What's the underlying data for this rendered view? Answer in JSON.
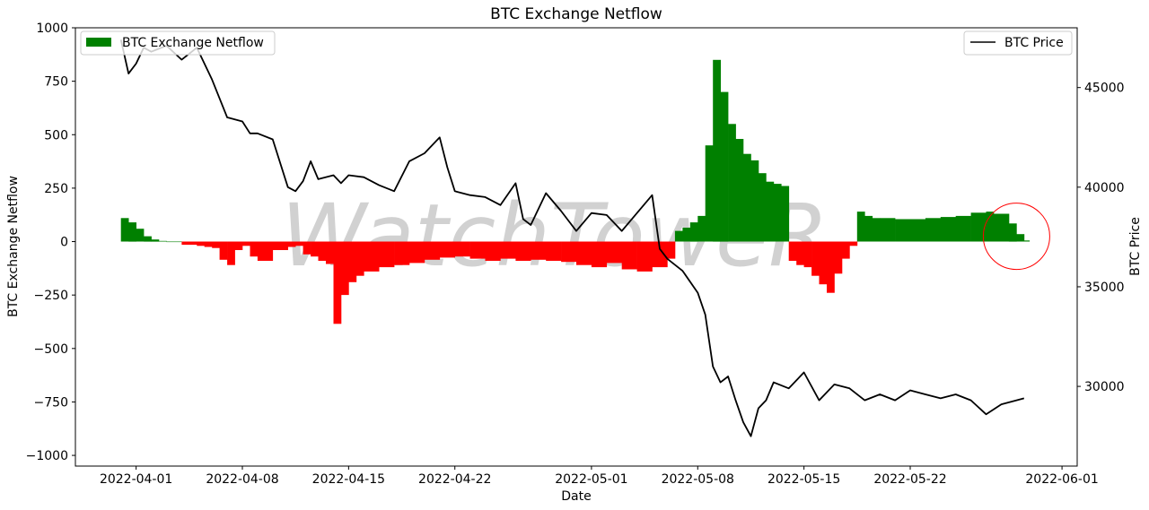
{
  "chart_data": {
    "type": "bar",
    "title": "BTC Exchange Netflow",
    "xlabel": "Date",
    "ylabel": "BTC Exchange Netflow",
    "y2label": "BTC Price",
    "watermark": "WatchToweR",
    "xlim": [
      "2022-03-28",
      "2022-06-02"
    ],
    "ylim": [
      -1050,
      1000
    ],
    "y2lim": [
      26000,
      48000
    ],
    "x_ticks": [
      "2022-04-01",
      "2022-04-08",
      "2022-04-15",
      "2022-04-22",
      "2022-05-01",
      "2022-05-08",
      "2022-05-15",
      "2022-05-22",
      "2022-06-01"
    ],
    "y_ticks": [
      1000,
      750,
      500,
      250,
      0,
      -250,
      -500,
      -750,
      -1000
    ],
    "y_tick_labels": [
      "1000",
      "750",
      "500",
      "250",
      "0",
      "−250",
      "−500",
      "−750",
      "−1000"
    ],
    "y2_ticks": [
      45000,
      40000,
      35000,
      30000
    ],
    "y2_tick_labels": [
      "45000",
      "40000",
      "35000",
      "30000"
    ],
    "legend": {
      "netflow_label": "BTC Exchange Netflow",
      "price_label": "BTC Price",
      "netflow_placement": "upper-left",
      "price_placement": "upper-right"
    },
    "colors": {
      "positive": "#008000",
      "negative": "#ff0000",
      "price": "#000000",
      "highlight_circle": "#ff0000"
    },
    "annotation": {
      "type": "circle",
      "center": {
        "date": "2022-05-29",
        "value": 25
      }
    },
    "series": [
      {
        "name": "BTC Exchange Netflow",
        "kind": "bar",
        "x": [
          "2022-03-31",
          "2022-03-31T12:00",
          "2022-04-01",
          "2022-04-01T12:00",
          "2022-04-02",
          "2022-04-02T12:00",
          "2022-04-03",
          "2022-04-04",
          "2022-04-05",
          "2022-04-05T12:00",
          "2022-04-06",
          "2022-04-06T12:00",
          "2022-04-07",
          "2022-04-07T12:00",
          "2022-04-08",
          "2022-04-08T12:00",
          "2022-04-09",
          "2022-04-10",
          "2022-04-11",
          "2022-04-11T12:00",
          "2022-04-12",
          "2022-04-12T12:00",
          "2022-04-13",
          "2022-04-13T12:00",
          "2022-04-14",
          "2022-04-14T12:00",
          "2022-04-15",
          "2022-04-15T12:00",
          "2022-04-16",
          "2022-04-17",
          "2022-04-18",
          "2022-04-19",
          "2022-04-20",
          "2022-04-21",
          "2022-04-22",
          "2022-04-23",
          "2022-04-24",
          "2022-04-25",
          "2022-04-26",
          "2022-04-27",
          "2022-04-28",
          "2022-04-29",
          "2022-04-30",
          "2022-05-01",
          "2022-05-02",
          "2022-05-03",
          "2022-05-04",
          "2022-05-05",
          "2022-05-06",
          "2022-05-06T12:00",
          "2022-05-07",
          "2022-05-07T12:00",
          "2022-05-08",
          "2022-05-08T12:00",
          "2022-05-09",
          "2022-05-09T12:00",
          "2022-05-10",
          "2022-05-10T12:00",
          "2022-05-11",
          "2022-05-11T12:00",
          "2022-05-12",
          "2022-05-12T12:00",
          "2022-05-13",
          "2022-05-13T12:00",
          "2022-05-14",
          "2022-05-14T12:00",
          "2022-05-15",
          "2022-05-15T12:00",
          "2022-05-16",
          "2022-05-16T12:00",
          "2022-05-17",
          "2022-05-17T12:00",
          "2022-05-18",
          "2022-05-18T12:00",
          "2022-05-19",
          "2022-05-19T12:00",
          "2022-05-20",
          "2022-05-21",
          "2022-05-22",
          "2022-05-23",
          "2022-05-24",
          "2022-05-25",
          "2022-05-26",
          "2022-05-27",
          "2022-05-27T12:00",
          "2022-05-28",
          "2022-05-28T12:00",
          "2022-05-29",
          "2022-05-29T12:00"
        ],
        "values": [
          110,
          90,
          60,
          25,
          10,
          3,
          0,
          -15,
          -20,
          -25,
          -30,
          -85,
          -110,
          -40,
          -20,
          -70,
          -90,
          -40,
          -25,
          -20,
          -60,
          -70,
          -90,
          -105,
          -385,
          -250,
          -190,
          -160,
          -140,
          -120,
          -110,
          -100,
          -85,
          -75,
          -70,
          -80,
          -90,
          -80,
          -90,
          -85,
          -90,
          -95,
          -110,
          -120,
          -100,
          -130,
          -140,
          -120,
          -80,
          50,
          65,
          90,
          120,
          450,
          850,
          700,
          550,
          480,
          410,
          380,
          320,
          280,
          270,
          260,
          -90,
          -110,
          -120,
          -160,
          -200,
          -240,
          -150,
          -80,
          -20,
          140,
          120,
          110,
          110,
          105,
          105,
          110,
          115,
          120,
          135,
          140,
          130,
          130,
          85,
          35,
          5
        ]
      },
      {
        "name": "BTC Price",
        "kind": "line",
        "axis": "right",
        "x": [
          "2022-03-31",
          "2022-03-31T12:00",
          "2022-04-01",
          "2022-04-01T12:00",
          "2022-04-02",
          "2022-04-03",
          "2022-04-04",
          "2022-04-05",
          "2022-04-06",
          "2022-04-07",
          "2022-04-08",
          "2022-04-08T12:00",
          "2022-04-09",
          "2022-04-10",
          "2022-04-11",
          "2022-04-11T12:00",
          "2022-04-12",
          "2022-04-12T12:00",
          "2022-04-13",
          "2022-04-14",
          "2022-04-14T12:00",
          "2022-04-15",
          "2022-04-16",
          "2022-04-17",
          "2022-04-18",
          "2022-04-19",
          "2022-04-20",
          "2022-04-21",
          "2022-04-21T12:00",
          "2022-04-22",
          "2022-04-23",
          "2022-04-24",
          "2022-04-25",
          "2022-04-26",
          "2022-04-26T12:00",
          "2022-04-27",
          "2022-04-28",
          "2022-04-29",
          "2022-04-30",
          "2022-05-01",
          "2022-05-02",
          "2022-05-03",
          "2022-05-04",
          "2022-05-05",
          "2022-05-05T12:00",
          "2022-05-06",
          "2022-05-07",
          "2022-05-08",
          "2022-05-08T12:00",
          "2022-05-09",
          "2022-05-09T12:00",
          "2022-05-10",
          "2022-05-10T12:00",
          "2022-05-11",
          "2022-05-11T12:00",
          "2022-05-12",
          "2022-05-12T12:00",
          "2022-05-13",
          "2022-05-14",
          "2022-05-15",
          "2022-05-16",
          "2022-05-17",
          "2022-05-18",
          "2022-05-19",
          "2022-05-20",
          "2022-05-21",
          "2022-05-22",
          "2022-05-23",
          "2022-05-24",
          "2022-05-25",
          "2022-05-26",
          "2022-05-27",
          "2022-05-28",
          "2022-05-29",
          "2022-05-29T12:00"
        ],
        "values": [
          47400,
          45700,
          46200,
          47000,
          46800,
          47100,
          46400,
          47000,
          45400,
          43500,
          43300,
          42700,
          42700,
          42400,
          40000,
          39800,
          40300,
          41300,
          40400,
          40600,
          40200,
          40600,
          40500,
          40100,
          39800,
          41300,
          41700,
          42500,
          41000,
          39800,
          39600,
          39500,
          39100,
          40200,
          38400,
          38100,
          39700,
          38800,
          37800,
          38700,
          38600,
          37800,
          38700,
          39600,
          36900,
          36400,
          35800,
          34700,
          33600,
          31000,
          30200,
          30500,
          29300,
          28200,
          27500,
          28900,
          29300,
          30200,
          29900,
          30700,
          29300,
          30100,
          29900,
          29300,
          29600,
          29300,
          29800,
          29600,
          29400,
          29600,
          29300,
          28600,
          29100,
          29300,
          29400
        ]
      }
    ]
  }
}
